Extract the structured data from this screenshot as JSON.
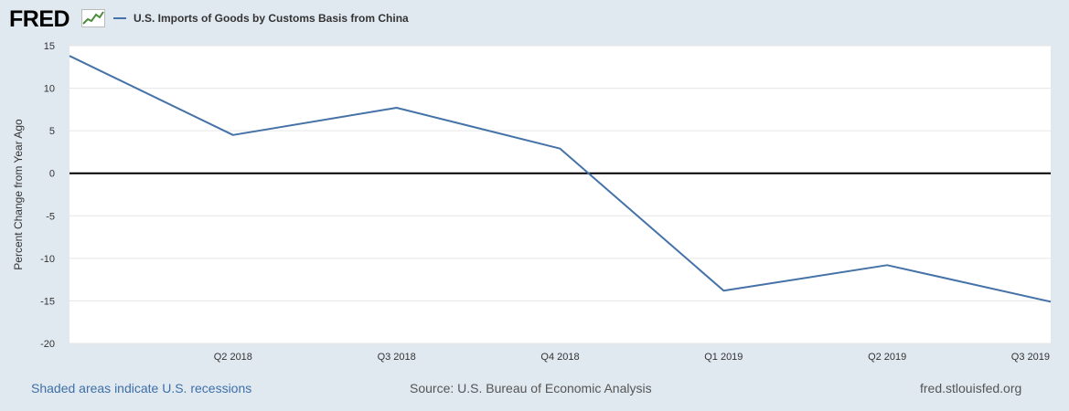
{
  "header": {
    "logo_text": "FRED",
    "logo_icon": "line-chart-icon",
    "series_title": "U.S. Imports of Goods by Customs Basis from China"
  },
  "colors": {
    "series": "#4572a7",
    "background": "#e1e9f0",
    "plot": "#ffffff",
    "grid": "#e6e6e6",
    "zero_line": "#000000"
  },
  "chart_data": {
    "type": "line",
    "title": "",
    "xlabel": "",
    "ylabel": "Percent Change from Year Ago",
    "ylim": [
      -20,
      15
    ],
    "yticks": [
      15,
      10,
      5,
      0,
      -5,
      -10,
      -15,
      -20
    ],
    "x_start": "Q1 2018",
    "x_end": "Q3 2019",
    "x_tick_labels": [
      "Q2 2018",
      "Q3 2018",
      "Q4 2018",
      "Q1 2019",
      "Q2 2019",
      "Q3 2019"
    ],
    "grid": true,
    "legend_position": "top-left",
    "series": [
      {
        "name": "U.S. Imports of Goods by Customs Basis from China",
        "x": [
          "Q1 2018",
          "Q2 2018",
          "Q3 2018",
          "Q4 2018",
          "Q1 2019",
          "Q2 2019",
          "Q3 2019"
        ],
        "values": [
          13.8,
          4.5,
          7.7,
          2.9,
          -13.8,
          -10.8,
          -15.1
        ]
      }
    ]
  },
  "footer": {
    "recessions_note": "Shaded areas indicate U.S. recessions",
    "source": "Source: U.S. Bureau of Economic Analysis",
    "site": "fred.stlouisfed.org"
  }
}
